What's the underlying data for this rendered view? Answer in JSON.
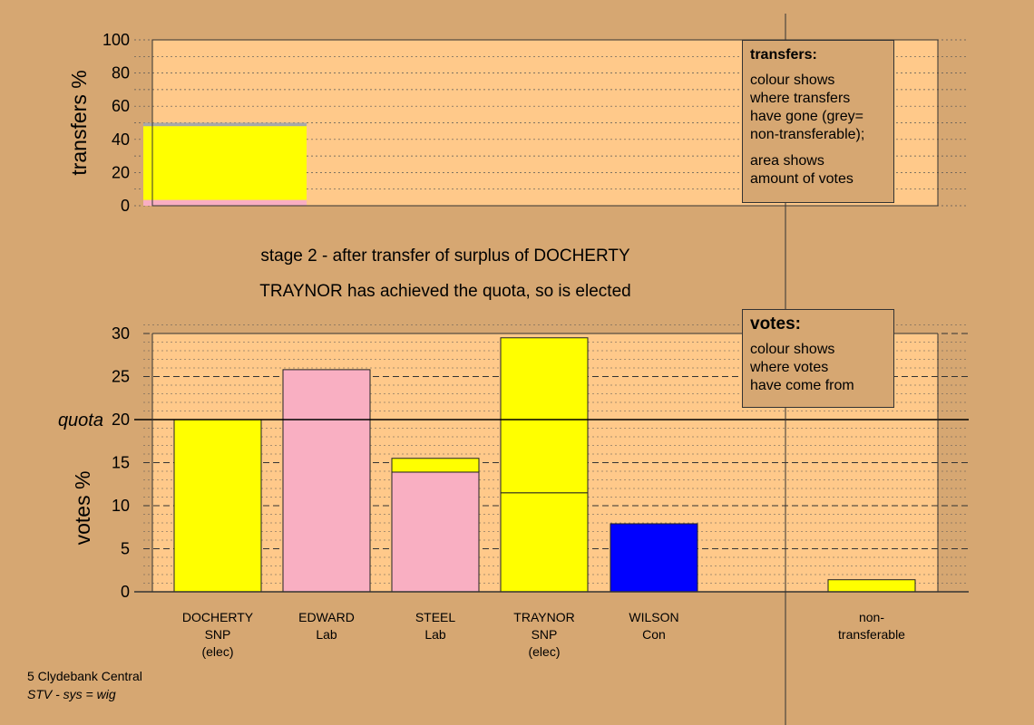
{
  "chart_data": [
    {
      "type": "bar",
      "stacked": true,
      "ylabel": "transfers %",
      "ylim": [
        0,
        100
      ],
      "yticks": [
        "0",
        "20",
        "40",
        "60",
        "80",
        "100"
      ],
      "grid": true,
      "bars": [
        {
          "segments": [
            {
              "value": 3.5,
              "color": "#F9AFC2"
            },
            {
              "value": 44.5,
              "color": "#FFFF00"
            },
            {
              "value": 2.0,
              "color": "#A8A8A8"
            }
          ]
        }
      ]
    },
    {
      "type": "bar",
      "stacked": true,
      "ylabel": "votes %",
      "ylim": [
        0,
        30
      ],
      "yticks": [
        "0",
        "5",
        "10",
        "15",
        "20",
        "25",
        "30"
      ],
      "quota": 20,
      "quota_label": "quota",
      "grid": true,
      "categories": [
        {
          "lines": [
            "DOCHERTY",
            "SNP",
            "(elec)"
          ],
          "segments": [
            {
              "value": 20,
              "color": "#FFFF00"
            }
          ]
        },
        {
          "lines": [
            "EDWARD",
            "Lab"
          ],
          "segments": [
            {
              "value": 25.8,
              "color": "#F9AFC2"
            }
          ]
        },
        {
          "lines": [
            "STEEL",
            "Lab"
          ],
          "segments": [
            {
              "value": 13.9,
              "color": "#F9AFC2"
            },
            {
              "value": 1.6,
              "color": "#FFFF00"
            }
          ]
        },
        {
          "lines": [
            "TRAYNOR",
            "SNP",
            "(elec)"
          ],
          "segments": [
            {
              "value": 11.5,
              "color": "#FFFF00"
            },
            {
              "value": 18.0,
              "color": "#FFFF00"
            }
          ]
        },
        {
          "lines": [
            "WILSON",
            "Con"
          ],
          "segments": [
            {
              "value": 7.9,
              "color": "#0000FF"
            }
          ]
        },
        {
          "lines": [
            "non-",
            "transferable"
          ],
          "segments": [
            {
              "value": 1.4,
              "color": "#FFFF00"
            }
          ]
        }
      ]
    }
  ],
  "legend_transfers": {
    "title": "transfers:",
    "lines": [
      "colour shows",
      "where transfers",
      "have gone (grey=",
      "non-transferable);"
    ],
    "lines2": [
      "area shows",
      "amount of votes"
    ]
  },
  "legend_votes": {
    "title": "votes:",
    "lines": [
      "colour shows",
      "where votes",
      "have come from"
    ]
  },
  "stage_title": "stage 2 - after transfer of surplus of DOCHERTY",
  "stage_subtitle": "TRAYNOR has achieved the quota, so is elected",
  "footer": {
    "line1": "5 Clydebank Central",
    "line2": "STV - sys = wig"
  },
  "colors": {
    "background": "#D6A772",
    "plot_bg": "#FFC98A",
    "snp": "#FFFF00",
    "lab": "#F9AFC2",
    "con": "#0000FF",
    "nontransferable": "#A8A8A8"
  }
}
